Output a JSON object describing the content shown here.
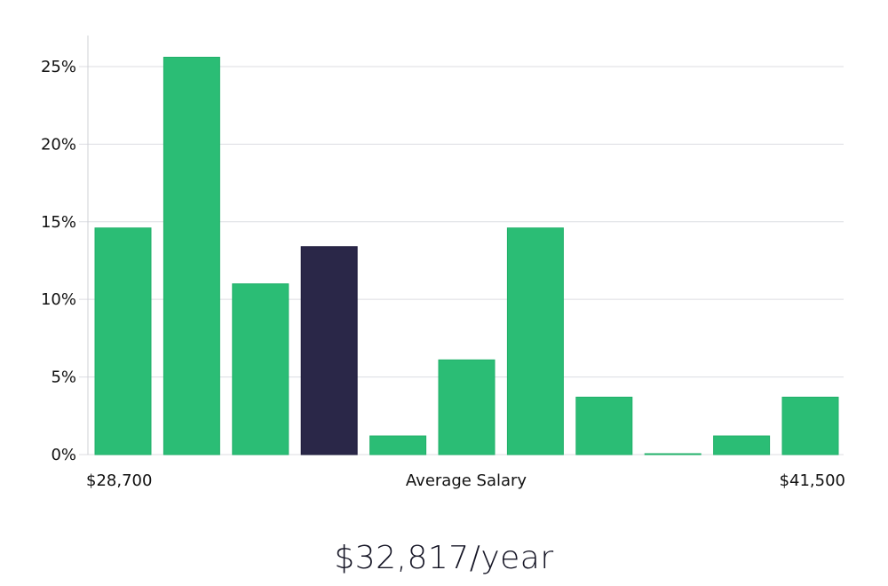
{
  "chart_data": {
    "type": "bar",
    "title": "",
    "xlabel": "Average Salary",
    "ylabel": "",
    "ylim": [
      0,
      27
    ],
    "yticks": [
      0,
      5,
      10,
      15,
      20,
      25
    ],
    "ytick_labels": [
      "0%",
      "5%",
      "10%",
      "15%",
      "20%",
      "25%"
    ],
    "x_range_labels": {
      "min": "$28,700",
      "max": "$41,500"
    },
    "values": [
      14.6,
      25.6,
      11.0,
      13.4,
      1.2,
      6.1,
      14.6,
      3.7,
      0.0,
      1.2,
      3.7
    ],
    "highlight_index": 3,
    "colors": {
      "bar": "#2bbd75",
      "highlight": "#2a2748",
      "grid": "#dcdde2",
      "axis": "#cfd0d6"
    }
  },
  "summary": {
    "salary": "$32,817/year"
  }
}
